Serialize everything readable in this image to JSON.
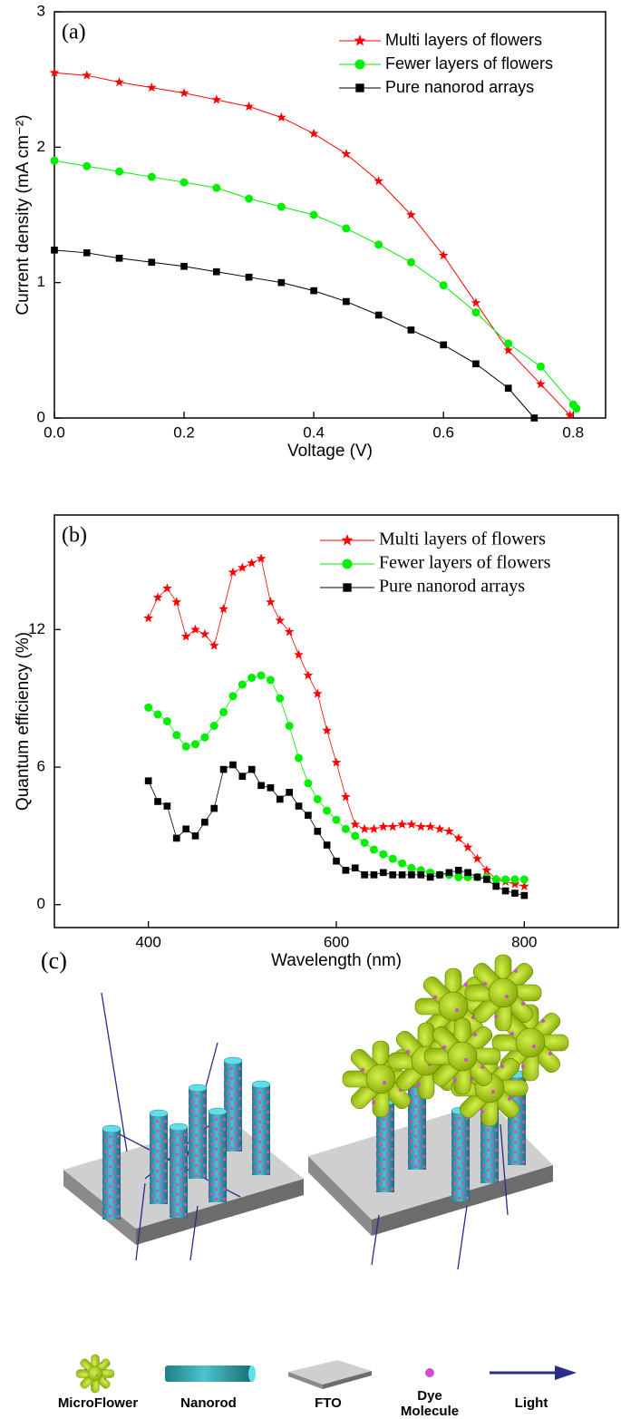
{
  "chart_data": [
    {
      "type": "line",
      "label": "(a)",
      "xlabel": "Voltage (V)",
      "ylabel": "Current density (mA cm⁻²)",
      "xlim": [
        0,
        0.85
      ],
      "ylim": [
        0,
        3
      ],
      "xticks": [
        {
          "value": 0,
          "label": "0.0"
        },
        0.2,
        0.4,
        0.6,
        0.8
      ],
      "yticks": [
        0,
        1,
        2,
        3
      ],
      "legend": "upper right",
      "series": [
        {
          "name": "Multi layers of flowers",
          "color": "#ff0000",
          "marker": "star",
          "x": [
            0,
            0.05,
            0.1,
            0.15,
            0.2,
            0.25,
            0.3,
            0.35,
            0.4,
            0.45,
            0.5,
            0.55,
            0.6,
            0.65,
            0.7,
            0.75,
            0.795
          ],
          "values": [
            2.55,
            2.53,
            2.48,
            2.44,
            2.4,
            2.35,
            2.3,
            2.22,
            2.1,
            1.95,
            1.75,
            1.5,
            1.2,
            0.85,
            0.5,
            0.25,
            0.02
          ]
        },
        {
          "name": "Fewer layers of flowers",
          "color": "#00ee00",
          "marker": "circle",
          "x": [
            0,
            0.05,
            0.1,
            0.15,
            0.2,
            0.25,
            0.3,
            0.35,
            0.4,
            0.45,
            0.5,
            0.55,
            0.6,
            0.65,
            0.7,
            0.75,
            0.8,
            0.805
          ],
          "values": [
            1.9,
            1.86,
            1.82,
            1.78,
            1.74,
            1.7,
            1.62,
            1.56,
            1.5,
            1.4,
            1.28,
            1.15,
            0.98,
            0.78,
            0.55,
            0.38,
            0.1,
            0.07
          ]
        },
        {
          "name": "Pure nanorod arrays",
          "color": "#000000",
          "marker": "square",
          "x": [
            0,
            0.05,
            0.1,
            0.15,
            0.2,
            0.25,
            0.3,
            0.35,
            0.4,
            0.45,
            0.5,
            0.55,
            0.6,
            0.65,
            0.7,
            0.74
          ],
          "values": [
            1.24,
            1.22,
            1.18,
            1.15,
            1.12,
            1.08,
            1.04,
            1.0,
            0.94,
            0.86,
            0.76,
            0.65,
            0.54,
            0.4,
            0.22,
            0.0
          ]
        }
      ]
    },
    {
      "type": "line",
      "label": "(b)",
      "xlabel": "Wavelength (nm)",
      "ylabel": "Quantum efficiency (%)",
      "xlim": [
        300,
        900
      ],
      "ylim": [
        -1,
        17
      ],
      "xticks": [
        400,
        600,
        800
      ],
      "yticks": [
        0,
        6,
        12
      ],
      "legend": "upper right",
      "x": [
        400,
        410,
        420,
        430,
        440,
        450,
        460,
        470,
        480,
        490,
        500,
        510,
        520,
        530,
        540,
        550,
        560,
        570,
        580,
        590,
        600,
        610,
        620,
        630,
        640,
        650,
        660,
        670,
        680,
        690,
        700,
        710,
        720,
        730,
        740,
        750,
        760,
        770,
        780,
        790,
        800
      ],
      "series": [
        {
          "name": "Multi layers of flowers",
          "color": "#ff0000",
          "marker": "star",
          "values": [
            12.5,
            13.4,
            13.8,
            13.2,
            11.7,
            12.0,
            11.8,
            11.3,
            12.9,
            14.5,
            14.7,
            14.9,
            15.1,
            13.2,
            12.4,
            11.9,
            10.9,
            10.0,
            9.2,
            7.6,
            6.2,
            4.7,
            3.5,
            3.3,
            3.3,
            3.4,
            3.4,
            3.5,
            3.5,
            3.4,
            3.4,
            3.3,
            3.2,
            2.9,
            2.5,
            2.0,
            1.5,
            1.1,
            1.0,
            0.9,
            0.8
          ]
        },
        {
          "name": "Fewer layers of flowers",
          "color": "#00ee00",
          "marker": "circle",
          "values": [
            8.6,
            8.3,
            8.0,
            7.4,
            6.9,
            7.0,
            7.3,
            7.8,
            8.4,
            9.1,
            9.6,
            9.9,
            10.0,
            9.8,
            9.0,
            7.8,
            6.4,
            5.3,
            4.6,
            4.1,
            3.7,
            3.3,
            3.0,
            2.7,
            2.4,
            2.2,
            2.0,
            1.8,
            1.6,
            1.5,
            1.4,
            1.3,
            1.3,
            1.2,
            1.2,
            1.2,
            1.2,
            1.1,
            1.1,
            1.1,
            1.1
          ]
        },
        {
          "name": "Pure nanorod arrays",
          "color": "#000000",
          "marker": "square",
          "values": [
            5.4,
            4.5,
            4.3,
            2.9,
            3.3,
            3.0,
            3.6,
            4.2,
            5.9,
            6.1,
            5.6,
            5.9,
            5.2,
            5.1,
            4.6,
            4.9,
            4.3,
            3.9,
            3.2,
            2.6,
            1.9,
            1.5,
            1.6,
            1.3,
            1.3,
            1.4,
            1.3,
            1.3,
            1.3,
            1.3,
            1.2,
            1.3,
            1.4,
            1.5,
            1.4,
            1.2,
            1.1,
            0.8,
            0.6,
            0.5,
            0.4
          ]
        }
      ]
    }
  ],
  "diagram": {
    "label": "(c)",
    "legend": [
      "MicroFlower",
      "Nanorod",
      "FTO",
      [
        "Dye",
        "Molecule"
      ],
      "Light"
    ]
  }
}
